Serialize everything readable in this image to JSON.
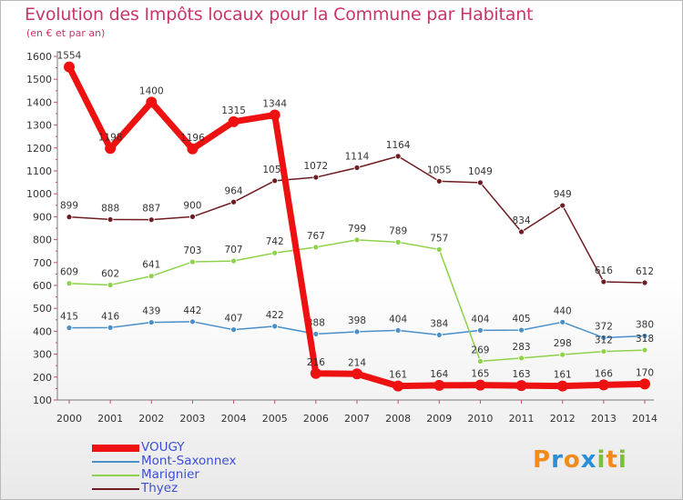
{
  "header": {
    "title": "Evolution des Impôts locaux pour la Commune par Habitant",
    "subtitle": "(en € et par an)"
  },
  "logo": {
    "letters": [
      "P",
      "r",
      "o",
      "x",
      "i",
      "t",
      "i"
    ],
    "colors": [
      "#f28a1e",
      "#2a8fd8",
      "#f28a1e",
      "#2a8fd8",
      "#7dbe3b",
      "#f28a1e",
      "#7dbe3b"
    ]
  },
  "chart_data": {
    "type": "line",
    "x": [
      "2000",
      "2001",
      "2002",
      "2003",
      "2004",
      "2005",
      "2006",
      "2007",
      "2008",
      "2009",
      "2010",
      "2011",
      "2012",
      "2013",
      "2014"
    ],
    "ylim": [
      100,
      1600
    ],
    "yticks": [
      100,
      200,
      300,
      400,
      500,
      600,
      700,
      800,
      900,
      1000,
      1100,
      1200,
      1300,
      1400,
      1500,
      1600
    ],
    "grid": false,
    "legend_position": "bottom-left",
    "series": [
      {
        "name": "VOUGY",
        "color": "#ee1111",
        "emphasis": true,
        "values": [
          1554,
          1198,
          1400,
          1196,
          1315,
          1344,
          216,
          214,
          161,
          164,
          165,
          163,
          161,
          166,
          170
        ]
      },
      {
        "name": "Mont-Saxonnex",
        "color": "#4a8fc8",
        "emphasis": false,
        "values": [
          415,
          416,
          439,
          442,
          407,
          422,
          388,
          398,
          404,
          384,
          404,
          405,
          440,
          372,
          380
        ]
      },
      {
        "name": "Marignier",
        "color": "#8ed14a",
        "emphasis": false,
        "values": [
          609,
          602,
          641,
          703,
          707,
          742,
          767,
          799,
          789,
          757,
          269,
          283,
          298,
          312,
          318
        ]
      },
      {
        "name": "Thyez",
        "color": "#6e1c22",
        "emphasis": false,
        "values": [
          899,
          888,
          887,
          900,
          964,
          1057,
          1072,
          1114,
          1164,
          1055,
          1049,
          834,
          949,
          616,
          612
        ]
      }
    ]
  }
}
